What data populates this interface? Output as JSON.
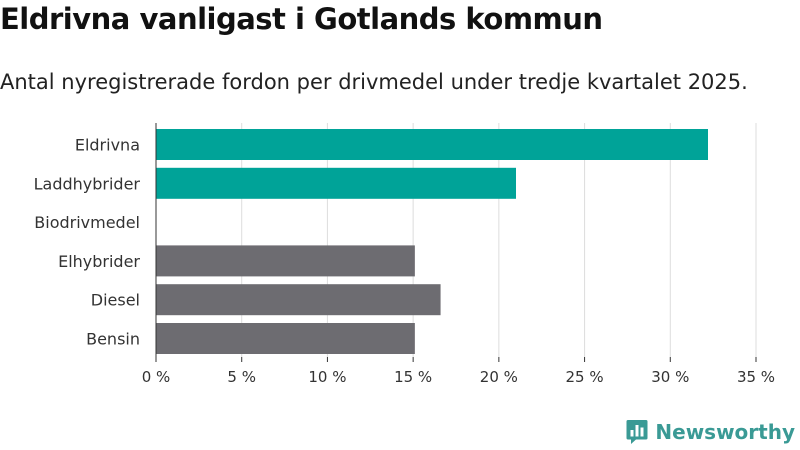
{
  "chart_data": {
    "type": "bar",
    "orientation": "horizontal",
    "title": "Eldrivna vanligast i Gotlands kommun",
    "subtitle": "Antal nyregistrerade fordon per drivmedel under tredje kvartalet 2025.",
    "categories": [
      "Eldrivna",
      "Laddhybrider",
      "Biodrivmedel",
      "Elhybrider",
      "Diesel",
      "Bensin"
    ],
    "values": [
      32.2,
      21.0,
      0,
      15.1,
      16.6,
      15.1
    ],
    "bar_colors": [
      "#00a398",
      "#00a398",
      "#00a398",
      "#6d6c71",
      "#6d6c71",
      "#6d6c71"
    ],
    "xlabel": "",
    "ylabel": "",
    "xlim": [
      0,
      35
    ],
    "xticks": [
      0,
      5,
      10,
      15,
      20,
      25,
      30,
      35
    ],
    "xtick_labels": [
      "0 %",
      "5 %",
      "10 %",
      "15 %",
      "20 %",
      "25 %",
      "30 %",
      "35 %"
    ],
    "grid": true,
    "legend": "none"
  },
  "brand": {
    "name": "Newsworthy",
    "logo_icon": "newsworthy-logo-icon",
    "color": "#3a9a95"
  },
  "colors": {
    "grid": "#dddddd",
    "axis": "#333333",
    "text": "#333333"
  }
}
